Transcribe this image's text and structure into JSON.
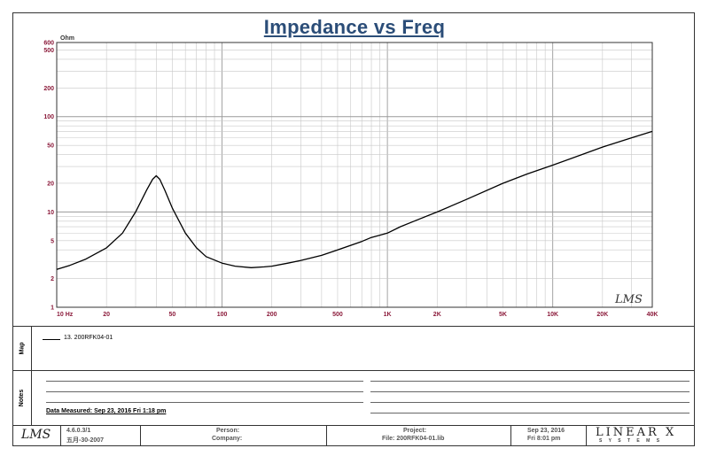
{
  "chart_data": {
    "type": "line",
    "title": "Impedance vs Freq",
    "y_unit_label": "Ohm",
    "x_scale": "log",
    "y_scale": "log",
    "xlim": [
      10,
      40000
    ],
    "ylim": [
      1,
      600
    ],
    "x_ticks": [
      {
        "v": 10,
        "label": "10  Hz"
      },
      {
        "v": 20,
        "label": "20"
      },
      {
        "v": 50,
        "label": "50"
      },
      {
        "v": 100,
        "label": "100"
      },
      {
        "v": 200,
        "label": "200"
      },
      {
        "v": 500,
        "label": "500"
      },
      {
        "v": 1000,
        "label": "1K"
      },
      {
        "v": 2000,
        "label": "2K"
      },
      {
        "v": 5000,
        "label": "5K"
      },
      {
        "v": 10000,
        "label": "10K"
      },
      {
        "v": 20000,
        "label": "20K"
      },
      {
        "v": 40000,
        "label": "40K"
      }
    ],
    "y_ticks": [
      {
        "v": 1,
        "label": "1"
      },
      {
        "v": 2,
        "label": "2"
      },
      {
        "v": 5,
        "label": "5"
      },
      {
        "v": 10,
        "label": "10"
      },
      {
        "v": 20,
        "label": "20"
      },
      {
        "v": 50,
        "label": "50"
      },
      {
        "v": 100,
        "label": "100"
      },
      {
        "v": 200,
        "label": "200"
      },
      {
        "v": 500,
        "label": "500"
      },
      {
        "v": 600,
        "label": "600"
      }
    ],
    "grid": true,
    "watermark": "LMS",
    "series": [
      {
        "name": "13. 200RFK04-01",
        "color": "#000000",
        "x": [
          10,
          12,
          15,
          20,
          25,
          30,
          35,
          38,
          40,
          42,
          45,
          50,
          60,
          70,
          80,
          100,
          120,
          150,
          180,
          200,
          250,
          300,
          400,
          500,
          700,
          800,
          900,
          1000,
          1200,
          1500,
          2000,
          3000,
          5000,
          7000,
          10000,
          15000,
          20000,
          30000,
          40000
        ],
        "y": [
          2.5,
          2.75,
          3.2,
          4.2,
          6.0,
          10.0,
          17.0,
          22.0,
          24.0,
          22.0,
          17.0,
          11.0,
          6.0,
          4.2,
          3.4,
          2.9,
          2.7,
          2.6,
          2.65,
          2.7,
          2.9,
          3.1,
          3.5,
          4.0,
          4.9,
          5.4,
          5.7,
          6.0,
          7.0,
          8.2,
          10.0,
          13.5,
          20.0,
          25.0,
          31.0,
          40.0,
          48.0,
          60.0,
          70.0
        ]
      }
    ]
  },
  "legend": {
    "section_label": "Map",
    "entry": "13. 200RFK04-01"
  },
  "notes": {
    "section_label": "Notes",
    "measured_text": "Data Measured: Sep 23, 2016  Fri  1:18 pm"
  },
  "footer": {
    "logo": "LMS",
    "version": "4.6.0.3/1",
    "version_date": "五月-30-2007",
    "person_label": "Person:",
    "company_label": "Company:",
    "project_label": "Project:",
    "file_label": "File: 200RFK04-01.lib",
    "date": "Sep 23, 2016",
    "time": "Fri  8:01 pm",
    "brand": "LINEAR X",
    "brand_sub": "S Y S T E M S"
  }
}
